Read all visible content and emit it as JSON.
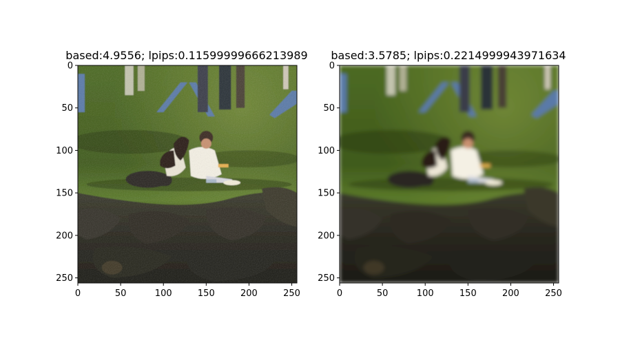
{
  "figure": {
    "panels": [
      {
        "title": "based:4.9556; lpips:0.11599999666213989",
        "image_desc": "sharper, noisier rendering",
        "x_ticks": [
          "0",
          "50",
          "100",
          "150",
          "200",
          "250"
        ],
        "y_ticks": [
          "0",
          "50",
          "100",
          "150",
          "200",
          "250"
        ]
      },
      {
        "title": "based:3.5785; lpips:0.2214999943971634",
        "image_desc": "smoother, blurrier rendering",
        "x_ticks": [
          "0",
          "50",
          "100",
          "150",
          "200",
          "250"
        ],
        "y_ticks": [
          "0",
          "50",
          "100",
          "150",
          "200",
          "250"
        ]
      }
    ],
    "colors": {
      "grass_light": "#5f7a2c",
      "grass_dark": "#2e3f16",
      "rocks": "#2b2a22",
      "shirt_white": "#f2eee2",
      "hair_dark": "#2a1a14",
      "jeans": "#4a6a9a"
    }
  }
}
